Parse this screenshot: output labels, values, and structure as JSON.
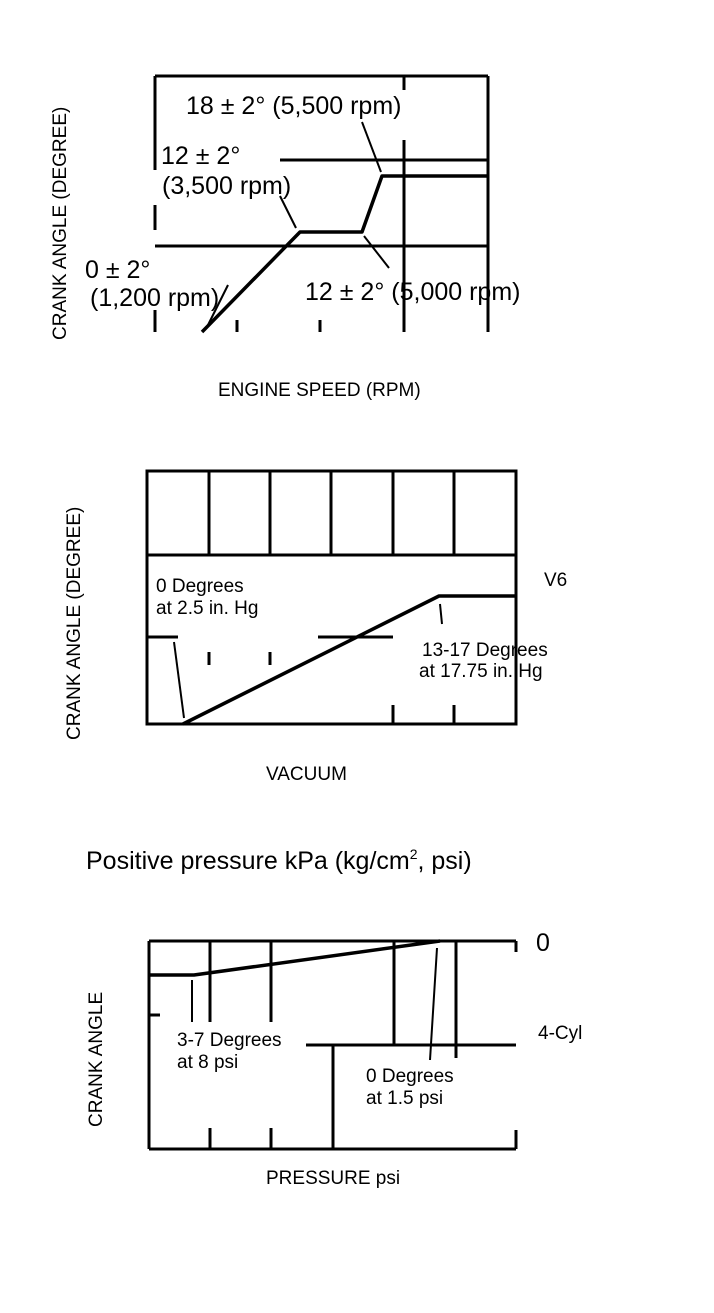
{
  "diagram1": {
    "ylabel": "CRANK ANGLE (DEGREE)",
    "xlabel": "ENGINE SPEED (RPM)",
    "label_top": "18 ± 2° (5,500 rpm)",
    "label_mid_line1": "12 ± 2°",
    "label_mid_line2": "(3,500 rpm)",
    "label_low_line1": "0 ± 2°",
    "label_low_line2": "(1,200 rpm)",
    "label_right": "12 ± 2° (5,000 rpm)"
  },
  "diagram2": {
    "ylabel": "CRANK ANGLE (DEGREE)",
    "xlabel": "VACUUM",
    "engine_label": "V6",
    "left_note_line1": "0 Degrees",
    "left_note_line2": "at 2.5 in. Hg",
    "right_note_line1": "13-17 Degrees",
    "right_note_line2": "at 17.75 in. Hg"
  },
  "section_title_main": "Positive pressure kPa (kg/cm",
  "section_title_sup": "2",
  "section_title_tail": ", psi)",
  "diagram3": {
    "ylabel": "CRANK ANGLE",
    "xlabel": "PRESSURE psi",
    "zero_label": "0",
    "engine_label": "4-Cyl",
    "left_note_line1": "3-7 Degrees",
    "left_note_line2": "at 8 psi",
    "right_note_line1": "0 Degrees",
    "right_note_line2": "at 1.5 psi"
  }
}
